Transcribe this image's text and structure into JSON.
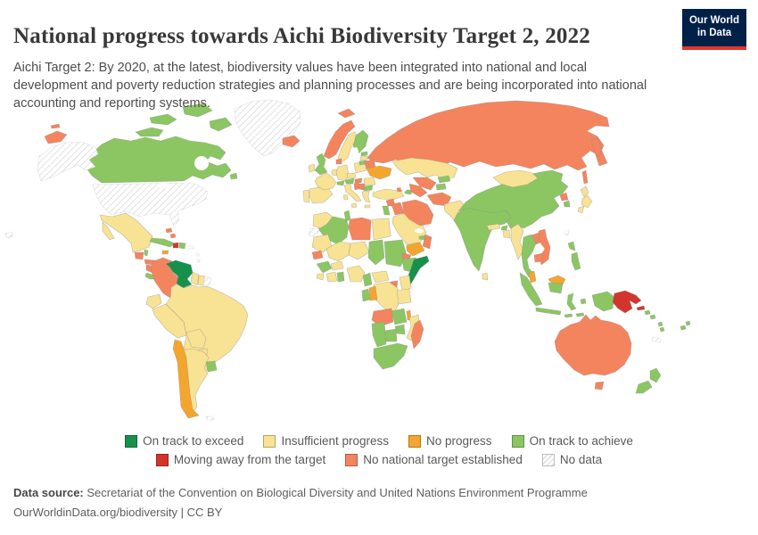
{
  "chart_data": {
    "type": "choropleth",
    "title": "National progress towards Aichi Biodiversity Target 2, 2022",
    "subtitle": "Aichi Target 2: By 2020, at the latest, biodiversity values have been integrated into national and local development and poverty reduction strategies and planning processes and are being incorporated into national accounting and reporting systems.",
    "year": 2022,
    "legend_position": "bottom",
    "categories": [
      {
        "id": "exceed",
        "label": "On track to exceed",
        "color": "#16914b"
      },
      {
        "id": "insufficient",
        "label": "Insufficient progress",
        "color": "#f8e294"
      },
      {
        "id": "noprogress",
        "label": "No progress",
        "color": "#f4a52e"
      },
      {
        "id": "achieve",
        "label": "On track to achieve",
        "color": "#8bc662"
      },
      {
        "id": "away",
        "label": "Moving away from the target",
        "color": "#d2352b"
      },
      {
        "id": "notarget",
        "label": "No national target established",
        "color": "#f4845e"
      },
      {
        "id": "nodata",
        "label": "No data",
        "color": "hatch"
      }
    ],
    "country_categories": {
      "canada": "achieve",
      "usa": "nodata",
      "greenland": "nodata",
      "mexico": "insufficient",
      "guatemala": "notarget",
      "belize": "achieve",
      "honduras": "notarget",
      "nicaragua": "notarget",
      "costa-rica": "achieve",
      "panama": "achieve",
      "cuba": "achieve",
      "jamaica": "noprogress",
      "haiti": "away",
      "dominican-republic": "achieve",
      "bahamas": "notarget",
      "puerto-rico": "nodata",
      "lesser-antilles": "nodata",
      "colombia": "notarget",
      "venezuela": "exceed",
      "guyana": "insufficient",
      "suriname": "insufficient",
      "french-guiana": "nodata",
      "ecuador": "insufficient",
      "peru": "insufficient",
      "brazil": "insufficient",
      "bolivia": "insufficient",
      "paraguay": "insufficient",
      "chile": "noprogress",
      "argentina": "insufficient",
      "uruguay": "achieve",
      "falkland-islands": "nodata",
      "iceland": "notarget",
      "norway": "notarget",
      "sweden": "insufficient",
      "finland": "achieve",
      "denmark": "notarget",
      "united-kingdom": "achieve",
      "ireland": "insufficient",
      "portugal": "insufficient",
      "spain": "insufficient",
      "france": "insufficient",
      "benelux": "insufficient",
      "germany": "insufficient",
      "switzerland": "achieve",
      "austria": "achieve",
      "czechia": "insufficient",
      "italy": "insufficient",
      "poland": "insufficient",
      "estonia": "achieve",
      "latvia": "insufficient",
      "lithuania": "achieve",
      "belarus": "notarget",
      "ukraine": "noprogress",
      "hungary": "notarget",
      "croatia-balkans": "notarget",
      "serbia": "notarget",
      "romania": "insufficient",
      "bulgaria": "achieve",
      "greece": "insufficient",
      "russia": "notarget",
      "morocco": "insufficient",
      "western-sahara": "nodata",
      "algeria": "achieve",
      "tunisia": "achieve",
      "libya": "notarget",
      "egypt": "insufficient",
      "mauritania": "insufficient",
      "senegal": "notarget",
      "guinea": "achieve",
      "sierra-leone": "insufficient",
      "ivory-coast": "insufficient",
      "ghana": "achieve",
      "burkina-faso": "insufficient",
      "mali": "insufficient",
      "niger": "insufficient",
      "nigeria": "insufficient",
      "chad": "achieve",
      "sudan": "achieve",
      "eritrea": "notarget",
      "ethiopia": "achieve",
      "somalia": "exceed",
      "uganda": "notarget",
      "kenya": "insufficient",
      "cameroon": "achieve",
      "central-african-republic": "insufficient",
      "drc": "insufficient",
      "gabon": "achieve",
      "congo": "noprogress",
      "angola": "notarget",
      "zambia": "achieve",
      "tanzania": "insufficient",
      "malawi": "noprogress",
      "mozambique": "insufficient",
      "zimbabwe": "achieve",
      "botswana": "achieve",
      "namibia": "achieve",
      "south-africa": "achieve",
      "madagascar": "notarget",
      "turkey": "insufficient",
      "syria": "notarget",
      "israel-jordan": "achieve",
      "iraq": "notarget",
      "saudi-arabia": "insufficient",
      "yemen": "noprogress",
      "oman": "notarget",
      "uae": "achieve",
      "iran": "notarget",
      "georgia": "notarget",
      "azerbaijan": "achieve",
      "kazakhstan": "insufficient",
      "uzbekistan": "notarget",
      "turkmenistan": "notarget",
      "kyrgyzstan": "achieve",
      "tajikistan": "achieve",
      "afghanistan": "notarget",
      "pakistan": "insufficient",
      "india": "achieve",
      "sri-lanka": "insufficient",
      "nepal": "insufficient",
      "bhutan": "achieve",
      "bangladesh": "insufficient",
      "myanmar": "insufficient",
      "china": "achieve",
      "mongolia": "insufficient",
      "north-korea": "notarget",
      "south-korea": "achieve",
      "japan": "insufficient",
      "taiwan": "nodata",
      "laos": "notarget",
      "vietnam": "notarget",
      "thailand": "achieve",
      "cambodia": "notarget",
      "malaysia": "noprogress",
      "indonesia": "achieve",
      "philippines": "achieve",
      "papua-new-guinea": "away",
      "solomon-islands": "achieve",
      "vanuatu": "achieve",
      "fiji": "achieve",
      "new-caledonia": "nodata",
      "australia": "notarget",
      "new-zealand": "achieve"
    }
  },
  "legend": {
    "rows": [
      [
        "exceed",
        "insufficient",
        "noprogress",
        "achieve"
      ],
      [
        "away",
        "notarget",
        "nodata"
      ]
    ]
  },
  "map": {
    "border_color": "#8a8a8a",
    "nodata_border": "#c6c6c6",
    "ocean": "#ffffff"
  },
  "brand": {
    "logo_line1": "Our World",
    "logo_line2": "in Data",
    "logo_bg": "#002147",
    "logo_bar": "#e0362c"
  },
  "footer": {
    "source_label": "Data source:",
    "source_text": " Secretariat of the Convention on Biological Diversity and United Nations Environment Programme",
    "license_text": "OurWorldinData.org/biodiversity | CC BY"
  }
}
